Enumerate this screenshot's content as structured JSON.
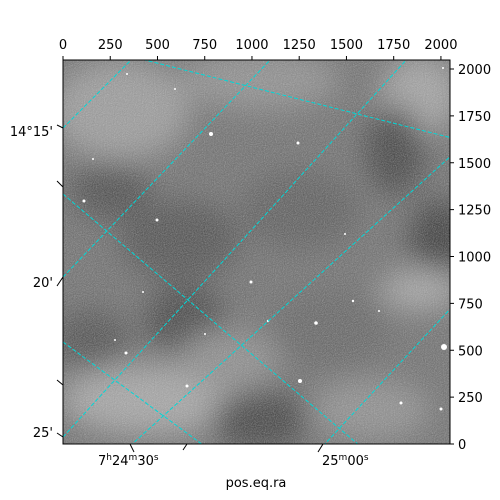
{
  "chart_data": {
    "type": "heatmap",
    "xlabel": "pos.eq.ra",
    "x_pixel_axis": {
      "range": [
        0,
        2048
      ],
      "ticks": [
        0,
        250,
        500,
        750,
        1000,
        1250,
        1500,
        1750,
        2000
      ],
      "tick_labels": [
        "0",
        "250",
        "500",
        "750",
        "1000",
        "1250",
        "1500",
        "1750",
        "2000"
      ]
    },
    "y_pixel_axis": {
      "range": [
        0,
        2048
      ],
      "ticks": [
        0,
        250,
        500,
        750,
        1000,
        1250,
        1500,
        1750,
        2000
      ],
      "tick_labels": [
        "0",
        "250",
        "500",
        "750",
        "1000",
        "1250",
        "1500",
        "1750",
        "2000"
      ]
    },
    "ra_ticks": [
      {
        "label_main": "7",
        "sup1": "h",
        "mid": "24",
        "sup2": "m",
        "end": "30",
        "sup3": "s"
      },
      {
        "label_main": "25",
        "sup1": "m",
        "mid": "00",
        "sup2": "s",
        "end": "",
        "sup3": ""
      }
    ],
    "dec_ticks": [
      {
        "label": "14°15'"
      },
      {
        "label": "20'"
      },
      {
        "label": "25'"
      }
    ],
    "grid": true,
    "grid_color": "#00d0d0",
    "colormap": "grayscale"
  }
}
